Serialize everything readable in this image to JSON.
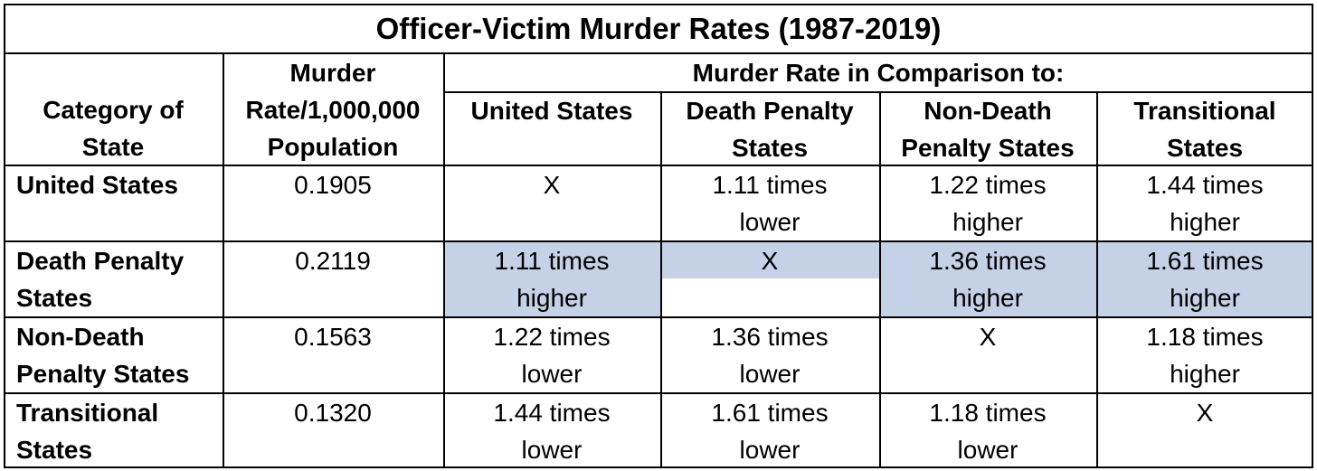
{
  "title": "Officer-Victim Murder Rates (1987-2019)",
  "headers": {
    "category": [
      "Category of",
      "State"
    ],
    "rate": [
      "Murder",
      "Rate/1,000,000",
      "Population"
    ],
    "comparison_group": "Murder Rate in Comparison to:",
    "comparison_columns": [
      [
        "United States"
      ],
      [
        "Death Penalty",
        "States"
      ],
      [
        "Non-Death",
        "Penalty States"
      ],
      [
        "Transitional",
        "States"
      ]
    ]
  },
  "rows": [
    {
      "category": [
        "United States"
      ],
      "rate": "0.1905",
      "comparisons": [
        [
          "X"
        ],
        [
          "1.11 times",
          "lower"
        ],
        [
          "1.22 times",
          "higher"
        ],
        [
          "1.44 times",
          "higher"
        ]
      ]
    },
    {
      "category": [
        "Death Penalty",
        "States"
      ],
      "rate": "0.2119",
      "comparisons": [
        [
          "1.11 times",
          "higher"
        ],
        [
          "X"
        ],
        [
          "1.36 times",
          "higher"
        ],
        [
          "1.61 times",
          "higher"
        ]
      ]
    },
    {
      "category": [
        "Non-Death",
        "Penalty States"
      ],
      "rate": "0.1563",
      "comparisons": [
        [
          "1.22 times",
          "lower"
        ],
        [
          "1.36 times",
          "lower"
        ],
        [
          "X"
        ],
        [
          "1.18 times",
          "higher"
        ]
      ]
    },
    {
      "category": [
        "Transitional",
        "States"
      ],
      "rate": "0.1320",
      "comparisons": [
        [
          "1.44 times",
          "lower"
        ],
        [
          "1.61 times",
          "lower"
        ],
        [
          "1.18 times",
          "lower"
        ],
        [
          "X"
        ]
      ]
    }
  ],
  "highlight_color": "#c4d1e7"
}
